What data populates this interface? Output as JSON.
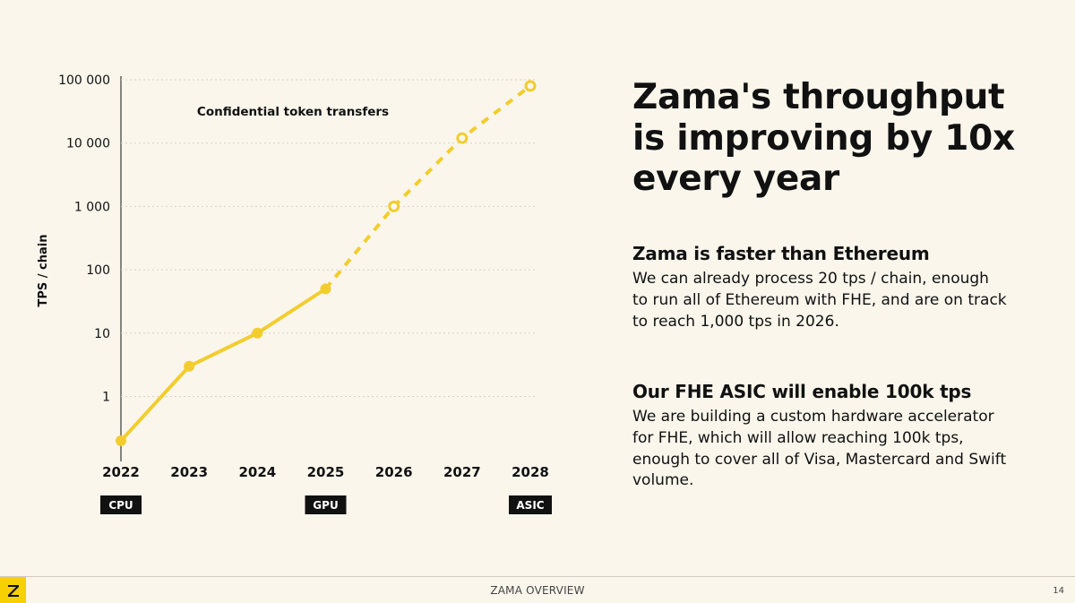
{
  "chart_data": {
    "type": "line",
    "title": "Confidential token transfers",
    "ylabel": "TPS / chain",
    "xlabel": "",
    "yscale": "log",
    "ylim": [
      0.1,
      100000
    ],
    "y_ticks": [
      1,
      10,
      100,
      1000,
      10000,
      100000
    ],
    "y_tick_labels": [
      "1",
      "10",
      "100",
      "1 000",
      "10 000",
      "100 000"
    ],
    "x": [
      2022,
      2023,
      2024,
      2025,
      2026,
      2027,
      2028
    ],
    "x_tick_labels": [
      "2022",
      "2023",
      "2024",
      "2025",
      "2026",
      "2027",
      "2028"
    ],
    "series": [
      {
        "values": [
          0.2,
          3,
          10,
          50,
          1000,
          12000,
          80000
        ],
        "actual_until": 2025,
        "style_actual": "solid, filled markers",
        "style_projected": "dashed, hollow markers",
        "color": "#f2cd2e"
      }
    ],
    "hardware_labels": [
      {
        "x": 2022,
        "label": "CPU"
      },
      {
        "x": 2025,
        "label": "GPU"
      },
      {
        "x": 2028,
        "label": "ASIC"
      }
    ],
    "grid": "horizontal dotted",
    "legend": "none"
  },
  "headline": [
    "Zama's throughput",
    "is improving by 10x",
    "every year"
  ],
  "section1": {
    "title": "Zama is faster than Ethereum",
    "body": "We can already process 20 tps / chain, enough to run all of Ethereum with FHE, and are on track to reach 1,000 tps in 2026."
  },
  "section2": {
    "title": "Our FHE ASIC will enable 100k tps",
    "body": "We are building a custom hardware accelerator for FHE, which will allow reaching 100k tps, enough to cover all of Visa, Mastercard and Swift volume."
  },
  "footer": {
    "title": "ZAMA OVERVIEW",
    "page": "14",
    "logo_icon": "zama-logo-icon",
    "logo_color": "#f7d000"
  }
}
